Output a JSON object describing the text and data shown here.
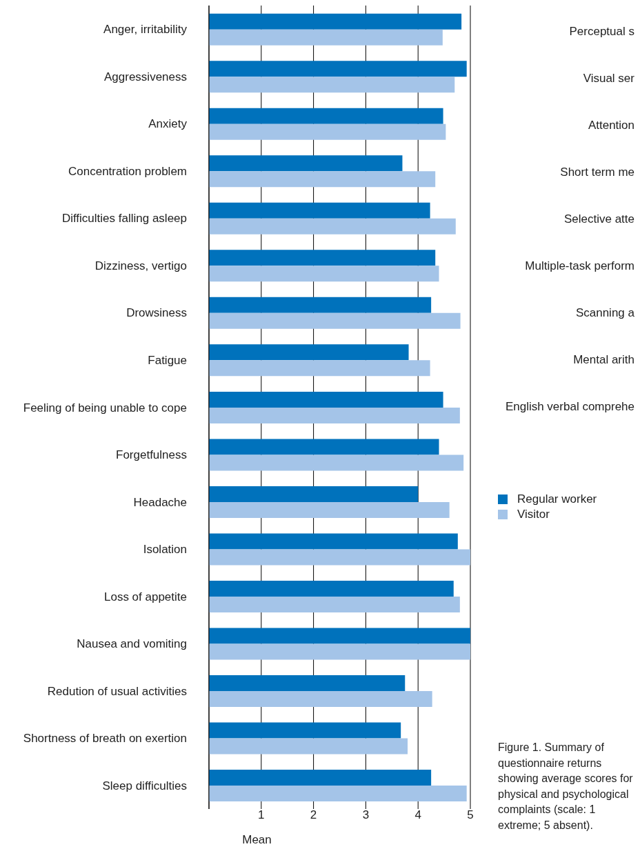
{
  "chart_data": [
    {
      "type": "bar",
      "orientation": "horizontal",
      "xlabel": "Mean",
      "categories": [
        "Anger, irritability",
        "Aggressiveness",
        "Anxiety",
        "Concentration problem",
        "Difficulties falling asleep",
        "Dizziness, vertigo",
        "Drowsiness",
        "Fatigue",
        "Feeling of being unable to cope",
        "Forgetfulness",
        "Headache",
        "Isolation",
        "Loss of appetite",
        "Nausea and vomiting",
        "Redution of usual activities",
        "Shortness of breath on exertion",
        "Sleep difficulties"
      ],
      "series": [
        {
          "name": "Regular worker",
          "color": "#0072bc",
          "values": [
            4.83,
            4.93,
            4.48,
            3.7,
            4.23,
            4.33,
            4.25,
            3.82,
            4.48,
            4.4,
            4.0,
            4.76,
            4.68,
            5.0,
            3.75,
            3.67,
            4.25
          ]
        },
        {
          "name": "Visitor",
          "color": "#a4c4e8",
          "values": [
            4.47,
            4.7,
            4.53,
            4.33,
            4.72,
            4.4,
            4.81,
            4.23,
            4.8,
            4.87,
            4.6,
            5.0,
            4.8,
            5.0,
            4.27,
            3.8,
            4.93
          ]
        }
      ],
      "xlim": [
        0,
        5
      ],
      "xticks": [
        {
          "value": 0,
          "label": null
        },
        1,
        2,
        3,
        4,
        5
      ],
      "grid": "x",
      "legend": "right",
      "annotations": [
        "Figure 1. Summary of questionnaire returns showing average scores for physical and psychological complaints (scale: 1 extreme; 5 absent)."
      ]
    },
    {
      "type": "other",
      "annotations": [
        "Perceptual s",
        "Visual ser",
        "Attention",
        "Short term me",
        "Selective atte",
        "Multiple-task perform",
        "Scanning a",
        "Mental arith",
        "English verbal comprehe"
      ]
    }
  ]
}
